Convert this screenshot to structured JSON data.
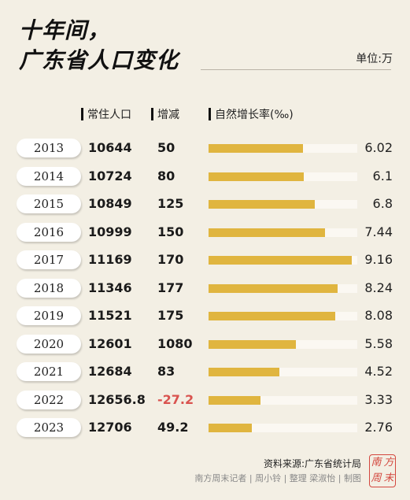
{
  "header": {
    "title_line1": "十年间，",
    "title_line2": "广东省人口变化",
    "unit": "单位:万"
  },
  "columns": {
    "population": "常住人口",
    "change": "增减",
    "rate": "自然增长率(‰)"
  },
  "chart_data": {
    "type": "bar",
    "title": "十年间，广东省人口变化",
    "categories": [
      "2013",
      "2014",
      "2015",
      "2016",
      "2017",
      "2018",
      "2019",
      "2020",
      "2021",
      "2022",
      "2023"
    ],
    "series": [
      {
        "name": "常住人口",
        "values": [
          "10644",
          "10724",
          "10849",
          "10999",
          "11169",
          "11346",
          "11521",
          "12601",
          "12684",
          "12656.8",
          "12706"
        ]
      },
      {
        "name": "增减",
        "values": [
          "50",
          "80",
          "125",
          "150",
          "170",
          "177",
          "175",
          "1080",
          "83",
          "-27.2",
          "49.2"
        ]
      },
      {
        "name": "自然增长率(‰)",
        "values": [
          "6.02",
          "6.1",
          "6.8",
          "7.44",
          "9.16",
          "8.24",
          "8.08",
          "5.58",
          "4.52",
          "3.33",
          "2.76"
        ]
      }
    ],
    "bar_series": "自然增长率(‰)",
    "xlim": [
      0,
      9.5
    ],
    "colors": {
      "bar": "#e0b53f",
      "negative": "#d9534f"
    }
  },
  "footer": {
    "source": "资料来源:广东省统计局",
    "credit": "南方周末记者 | 周小铃 | 整理   梁淑怡 | 制图",
    "seal_chars": [
      "南",
      "方",
      "周",
      "末"
    ]
  }
}
